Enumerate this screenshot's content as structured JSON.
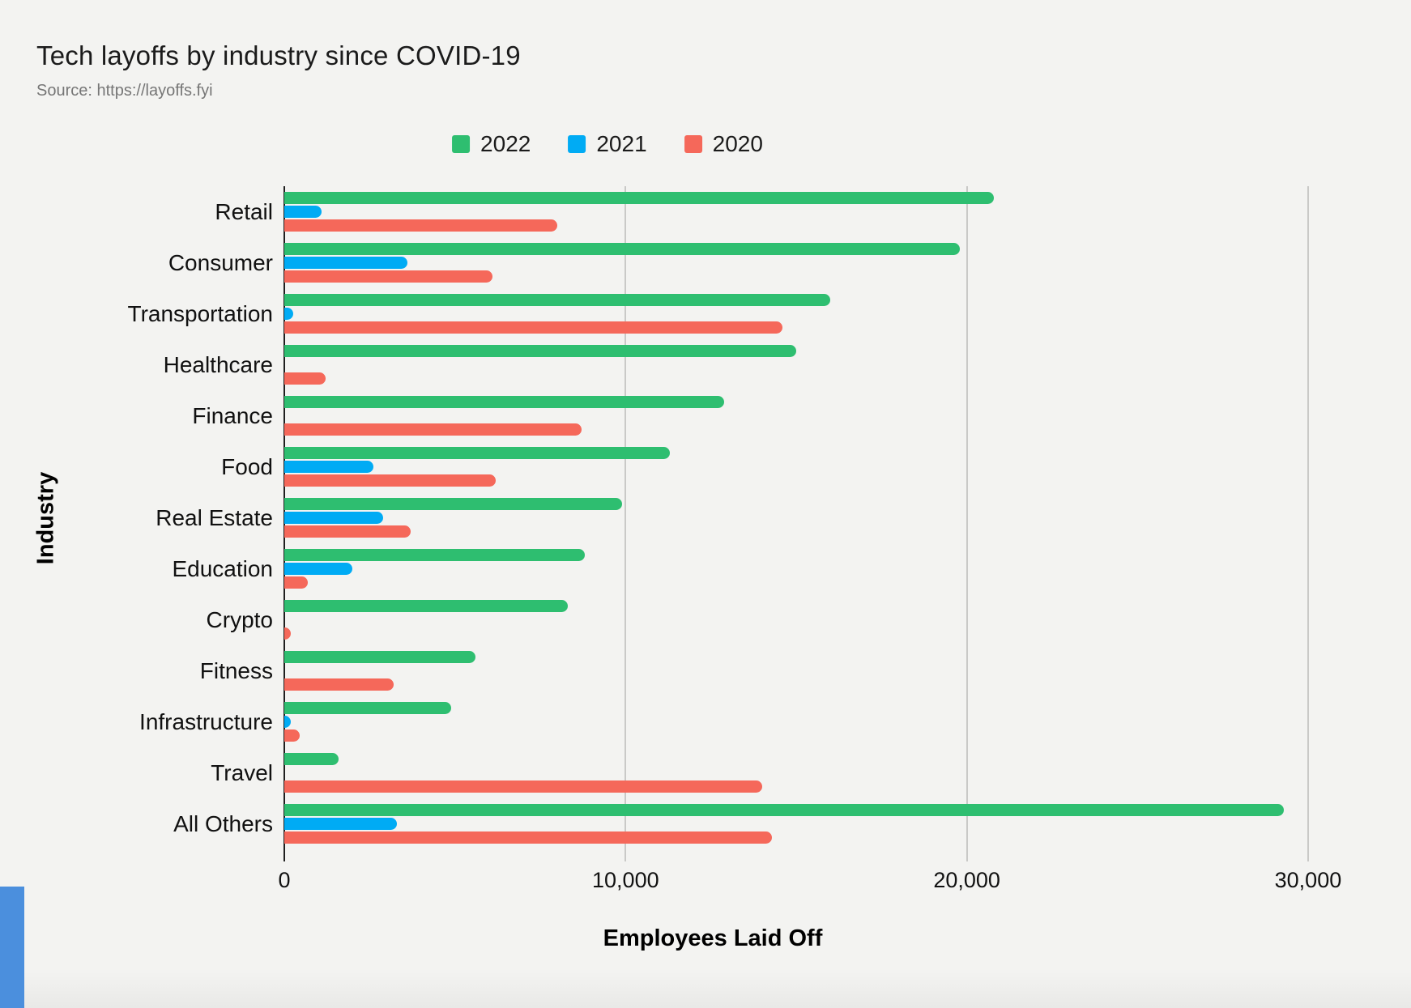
{
  "chart_data": {
    "type": "bar",
    "orientation": "horizontal-grouped",
    "title": "Tech layoffs by industry since COVID-19",
    "source": "Source: https://layoffs.fyi",
    "xlabel": "Employees Laid Off",
    "ylabel": "Industry",
    "xlim": [
      0,
      31900
    ],
    "xticks": [
      0,
      10000,
      20000,
      30000
    ],
    "xtick_labels": [
      "0",
      "10,000",
      "20,000",
      "30,000"
    ],
    "grid": "vertical-only",
    "legend_position": "top-center",
    "categories": [
      "Retail",
      "Consumer",
      "Transportation",
      "Healthcare",
      "Finance",
      "Food",
      "Real Estate",
      "Education",
      "Crypto",
      "Fitness",
      "Infrastructure",
      "Travel",
      "All Others"
    ],
    "series": [
      {
        "name": "2022",
        "color": "#2EBE70",
        "values": [
          20800,
          19800,
          16000,
          15000,
          12900,
          11300,
          9900,
          8800,
          8300,
          5600,
          4900,
          1600,
          29300
        ]
      },
      {
        "name": "2021",
        "color": "#00ABF4",
        "values": [
          1100,
          3600,
          250,
          0,
          0,
          2600,
          2900,
          2000,
          0,
          0,
          200,
          0,
          3300
        ]
      },
      {
        "name": "2020",
        "color": "#F5685A",
        "values": [
          8000,
          6100,
          14600,
          1200,
          8700,
          6200,
          3700,
          700,
          200,
          3200,
          450,
          14000,
          14300
        ]
      }
    ]
  },
  "colors": {
    "background": "#F3F3F1",
    "axis": "#1F1F1F",
    "gridline": "#C9C9C7",
    "title_text": "#1B1B1B",
    "source_text": "#767676",
    "corner_accent": "#4B8FDD"
  }
}
